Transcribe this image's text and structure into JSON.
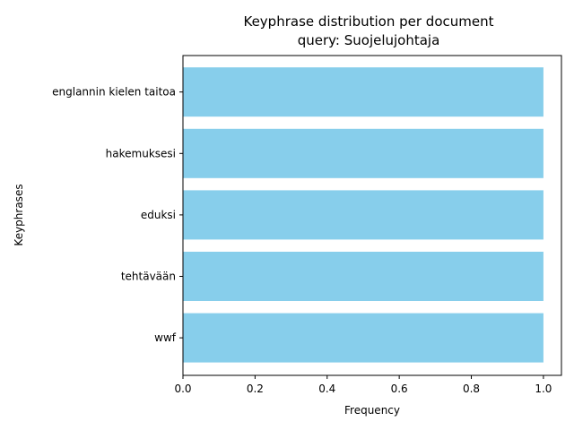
{
  "chart_data": {
    "type": "bar",
    "orientation": "horizontal",
    "title": "Keyphrase distribution per document",
    "subtitle": "query: Suojelujohtaja",
    "xlabel": "Frequency",
    "ylabel": "Keyphrases",
    "categories": [
      "englannin kielen taitoa",
      "hakemuksesi",
      "eduksi",
      "tehtävään",
      "wwf"
    ],
    "values": [
      1,
      1,
      1,
      1,
      1
    ],
    "xlim": [
      0,
      1.05
    ],
    "xticks": [
      0.0,
      0.2,
      0.4,
      0.6,
      0.8,
      1.0
    ],
    "xtick_labels": [
      "0.0",
      "0.2",
      "0.4",
      "0.6",
      "0.8",
      "1.0"
    ],
    "bar_color": "#87ceeb",
    "grid": false,
    "legend": "none"
  }
}
